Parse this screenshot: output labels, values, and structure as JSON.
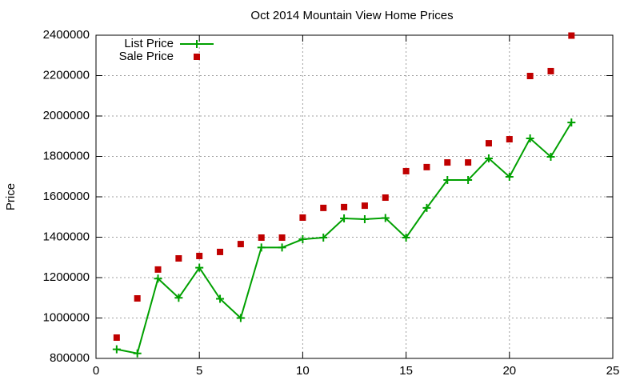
{
  "chart_data": {
    "type": "line",
    "title": "Oct 2014 Mountain View Home Prices",
    "ylabel": "Price",
    "x": [
      1,
      2,
      3,
      4,
      5,
      6,
      7,
      8,
      9,
      10,
      11,
      12,
      13,
      14,
      15,
      16,
      17,
      18,
      19,
      20,
      21,
      22,
      23
    ],
    "series": [
      {
        "name": "List Price",
        "color": "#00a000",
        "style": "linespoints",
        "values": [
          845000,
          825000,
          1195000,
          1100000,
          1249000,
          1095000,
          1000000,
          1349000,
          1349000,
          1390000,
          1398000,
          1493000,
          1489000,
          1495000,
          1398000,
          1545000,
          1683000,
          1683000,
          1790000,
          1699000,
          1889000,
          1798000,
          1968000
        ]
      },
      {
        "name": "Sale Price",
        "color": "#c00000",
        "style": "points",
        "values": [
          903000,
          1097000,
          1240000,
          1295000,
          1307000,
          1327000,
          1366000,
          1398000,
          1398000,
          1497000,
          1545000,
          1549000,
          1556000,
          1596000,
          1727000,
          1747000,
          1770000,
          1770000,
          1865000,
          1885000,
          2198000,
          2222000,
          2398000
        ]
      }
    ],
    "xlim": [
      0,
      25
    ],
    "xticks": [
      0,
      5,
      10,
      15,
      20,
      25
    ],
    "ylim": [
      800000,
      2400000
    ],
    "yticks": [
      800000,
      1000000,
      1200000,
      1400000,
      1600000,
      1800000,
      2000000,
      2200000,
      2400000
    ],
    "grid": true,
    "legend": "top-left"
  }
}
